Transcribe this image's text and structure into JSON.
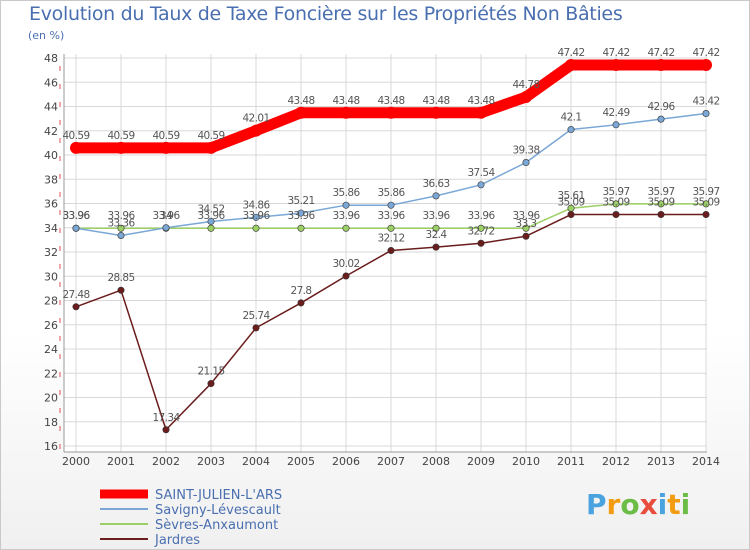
{
  "chart_data": {
    "type": "line",
    "title": "Evolution du Taux de Taxe Foncière sur les Propriétés Non Bâties",
    "subtitle": "(en %)",
    "x": [
      "2000",
      "2001",
      "2002",
      "2003",
      "2004",
      "2005",
      "2006",
      "2007",
      "2008",
      "2009",
      "2010",
      "2011",
      "2012",
      "2013",
      "2014"
    ],
    "ylim": [
      16,
      48
    ],
    "yticks": [
      16,
      18,
      20,
      22,
      24,
      26,
      28,
      30,
      32,
      34,
      36,
      38,
      40,
      42,
      44,
      46,
      48
    ],
    "grid": true,
    "legend_position": "bottom-left",
    "series": [
      {
        "name": "SAINT-JULIEN-L'ARS",
        "color": "#ff0000",
        "values": [
          40.59,
          40.59,
          40.59,
          40.59,
          42.01,
          43.48,
          43.48,
          43.48,
          43.48,
          43.48,
          44.78,
          47.42,
          47.42,
          47.42,
          47.42
        ],
        "labels": [
          "40.59",
          "40.59",
          "40.59",
          "40.59",
          "42.01",
          "43.48",
          "43.48",
          "43.48",
          "43.48",
          "43.48",
          "44.78",
          "47.42",
          "47.42",
          "47.42",
          "47.42"
        ]
      },
      {
        "name": "Savigny-Lévescault",
        "color": "#7aa7d6",
        "values": [
          33.96,
          33.36,
          34.0,
          34.52,
          34.86,
          35.21,
          35.86,
          35.86,
          36.63,
          37.54,
          39.38,
          42.1,
          42.49,
          42.96,
          43.42
        ],
        "labels": [
          "33.96",
          "33.36",
          "34",
          "34.52",
          "34.86",
          "35.21",
          "35.86",
          "35.86",
          "36.63",
          "37.54",
          "39.38",
          "42.1",
          "42.49",
          "42.96",
          "43.42"
        ]
      },
      {
        "name": "Sèvres-Anxaumont",
        "color": "#9ccf65",
        "values": [
          33.96,
          33.96,
          33.96,
          33.96,
          33.96,
          33.96,
          33.96,
          33.96,
          33.96,
          33.96,
          33.96,
          35.61,
          35.97,
          35.97,
          35.97
        ],
        "labels": [
          "33.96",
          "33.96",
          "33.96",
          "33.96",
          "33.96",
          "33.96",
          "33.96",
          "33.96",
          "33.96",
          "33.96",
          "33.96",
          "35.61",
          "35.97",
          "35.97",
          "35.97"
        ]
      },
      {
        "name": "Jardres",
        "color": "#6b1c1c",
        "values": [
          27.48,
          28.85,
          17.34,
          21.15,
          25.74,
          27.8,
          30.02,
          32.12,
          32.4,
          32.72,
          33.3,
          35.09,
          35.09,
          35.09,
          35.09
        ],
        "labels": [
          "27.48",
          "28.85",
          "17.34",
          "21.15",
          "25.74",
          "27.8",
          "30.02",
          "32.12",
          "32.4",
          "32.72",
          "33.3",
          "35.09",
          "35.09",
          "35.09",
          "35.09"
        ]
      }
    ]
  },
  "logo": {
    "letters": [
      "P",
      "r",
      "o",
      "x",
      "i",
      "t",
      "i"
    ]
  }
}
